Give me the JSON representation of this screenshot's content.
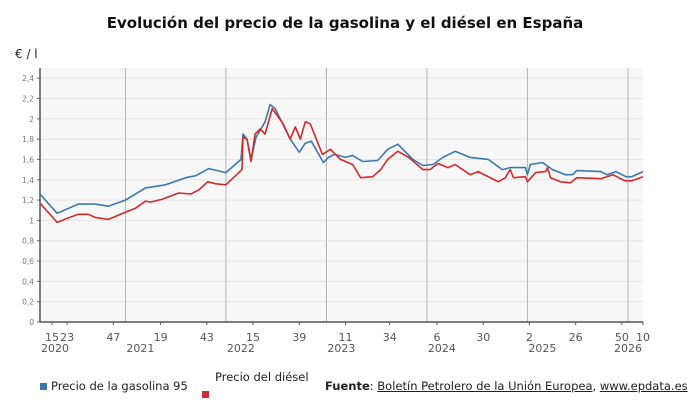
{
  "chart_data": {
    "type": "line",
    "title": "Evolución del precio de la gasolina y el diésel en España",
    "ylabel": "€ / l",
    "xlabel": "",
    "ylim": [
      0,
      2.5
    ],
    "xlim": [
      2020.15,
      2026.15
    ],
    "y_ticks": [
      "0",
      "0,2",
      "0,4",
      "0,6",
      "0,8",
      "1",
      "1,2",
      "1,4",
      "1,6",
      "1,8",
      "2",
      "2,2",
      "2,4"
    ],
    "y_tick_values": [
      0,
      0.2,
      0.4,
      0.6,
      0.8,
      1,
      1.2,
      1.4,
      1.6,
      1.8,
      2,
      2.2,
      2.4
    ],
    "x_ticks": [
      {
        "label": "15",
        "x": 2020.27
      },
      {
        "label": "23",
        "x": 2020.42
      },
      {
        "label": "47",
        "x": 2020.88
      },
      {
        "label": "19",
        "x": 2021.35
      },
      {
        "label": "43",
        "x": 2021.81
      },
      {
        "label": "15",
        "x": 2022.27
      },
      {
        "label": "39",
        "x": 2022.73
      },
      {
        "label": "11",
        "x": 2023.19
      },
      {
        "label": "34",
        "x": 2023.63
      },
      {
        "label": "6",
        "x": 2024.1
      },
      {
        "label": "30",
        "x": 2024.56
      },
      {
        "label": "2",
        "x": 2025.02
      },
      {
        "label": "26",
        "x": 2025.48
      },
      {
        "label": "50",
        "x": 2025.94
      },
      {
        "label": "10",
        "x": 2026.17
      }
    ],
    "year_labels": [
      {
        "label": "2020",
        "x": 2020.15
      },
      {
        "label": "2021",
        "x": 2021.0
      },
      {
        "label": "2022",
        "x": 2022.0
      },
      {
        "label": "2023",
        "x": 2023.0
      },
      {
        "label": "2024",
        "x": 2024.0
      },
      {
        "label": "2025",
        "x": 2025.0
      },
      {
        "label": "2026",
        "x": 2026.0
      }
    ],
    "year_dividers": [
      2021,
      2022,
      2023,
      2024,
      2025,
      2026
    ],
    "grid": true,
    "legend_position": "bottom-left",
    "series": [
      {
        "name": "Precio de la gasolina 95",
        "color": "#3a78b0",
        "points": [
          [
            2020.15,
            1.26
          ],
          [
            2020.32,
            1.07
          ],
          [
            2020.53,
            1.16
          ],
          [
            2020.7,
            1.16
          ],
          [
            2020.83,
            1.14
          ],
          [
            2021.0,
            1.2
          ],
          [
            2021.2,
            1.32
          ],
          [
            2021.4,
            1.35
          ],
          [
            2021.6,
            1.42
          ],
          [
            2021.7,
            1.44
          ],
          [
            2021.83,
            1.51
          ],
          [
            2022.0,
            1.47
          ],
          [
            2022.15,
            1.6
          ],
          [
            2022.17,
            1.85
          ],
          [
            2022.21,
            1.8
          ],
          [
            2022.25,
            1.6
          ],
          [
            2022.3,
            1.82
          ],
          [
            2022.39,
            1.97
          ],
          [
            2022.44,
            2.14
          ],
          [
            2022.49,
            2.1
          ],
          [
            2022.64,
            1.8
          ],
          [
            2022.73,
            1.67
          ],
          [
            2022.79,
            1.76
          ],
          [
            2022.85,
            1.78
          ],
          [
            2022.97,
            1.57
          ],
          [
            2023.02,
            1.62
          ],
          [
            2023.08,
            1.65
          ],
          [
            2023.19,
            1.62
          ],
          [
            2023.26,
            1.64
          ],
          [
            2023.36,
            1.58
          ],
          [
            2023.51,
            1.59
          ],
          [
            2023.61,
            1.7
          ],
          [
            2023.71,
            1.75
          ],
          [
            2023.76,
            1.7
          ],
          [
            2023.86,
            1.6
          ],
          [
            2023.96,
            1.54
          ],
          [
            2024.06,
            1.55
          ],
          [
            2024.16,
            1.62
          ],
          [
            2024.28,
            1.68
          ],
          [
            2024.43,
            1.62
          ],
          [
            2024.61,
            1.6
          ],
          [
            2024.75,
            1.5
          ],
          [
            2024.83,
            1.52
          ],
          [
            2024.98,
            1.52
          ],
          [
            2025.0,
            1.45
          ],
          [
            2025.03,
            1.55
          ],
          [
            2025.15,
            1.57
          ],
          [
            2025.25,
            1.5
          ],
          [
            2025.38,
            1.45
          ],
          [
            2025.45,
            1.45
          ],
          [
            2025.49,
            1.49
          ],
          [
            2025.73,
            1.48
          ],
          [
            2025.79,
            1.45
          ],
          [
            2025.88,
            1.48
          ],
          [
            2025.98,
            1.43
          ],
          [
            2026.04,
            1.43
          ],
          [
            2026.15,
            1.48
          ]
        ]
      },
      {
        "name": "Precio del diésel",
        "color": "#d42a2a",
        "points": [
          [
            2020.15,
            1.17
          ],
          [
            2020.32,
            0.98
          ],
          [
            2020.42,
            1.02
          ],
          [
            2020.53,
            1.06
          ],
          [
            2020.63,
            1.06
          ],
          [
            2020.7,
            1.03
          ],
          [
            2020.83,
            1.01
          ],
          [
            2021.0,
            1.08
          ],
          [
            2021.1,
            1.12
          ],
          [
            2021.2,
            1.19
          ],
          [
            2021.25,
            1.18
          ],
          [
            2021.37,
            1.21
          ],
          [
            2021.53,
            1.27
          ],
          [
            2021.65,
            1.26
          ],
          [
            2021.73,
            1.3
          ],
          [
            2021.82,
            1.38
          ],
          [
            2021.9,
            1.36
          ],
          [
            2022.0,
            1.35
          ],
          [
            2022.16,
            1.5
          ],
          [
            2022.17,
            1.82
          ],
          [
            2022.21,
            1.8
          ],
          [
            2022.25,
            1.58
          ],
          [
            2022.29,
            1.85
          ],
          [
            2022.34,
            1.9
          ],
          [
            2022.39,
            1.85
          ],
          [
            2022.46,
            2.1
          ],
          [
            2022.57,
            1.95
          ],
          [
            2022.64,
            1.8
          ],
          [
            2022.69,
            1.92
          ],
          [
            2022.74,
            1.8
          ],
          [
            2022.79,
            1.97
          ],
          [
            2022.84,
            1.95
          ],
          [
            2022.96,
            1.65
          ],
          [
            2023.04,
            1.7
          ],
          [
            2023.14,
            1.6
          ],
          [
            2023.26,
            1.55
          ],
          [
            2023.34,
            1.42
          ],
          [
            2023.46,
            1.43
          ],
          [
            2023.54,
            1.5
          ],
          [
            2023.61,
            1.6
          ],
          [
            2023.71,
            1.68
          ],
          [
            2023.82,
            1.62
          ],
          [
            2023.96,
            1.5
          ],
          [
            2024.03,
            1.5
          ],
          [
            2024.11,
            1.56
          ],
          [
            2024.21,
            1.52
          ],
          [
            2024.28,
            1.55
          ],
          [
            2024.43,
            1.45
          ],
          [
            2024.51,
            1.48
          ],
          [
            2024.71,
            1.38
          ],
          [
            2024.78,
            1.42
          ],
          [
            2024.83,
            1.5
          ],
          [
            2024.86,
            1.42
          ],
          [
            2024.98,
            1.43
          ],
          [
            2025.0,
            1.38
          ],
          [
            2025.08,
            1.47
          ],
          [
            2025.18,
            1.48
          ],
          [
            2025.2,
            1.52
          ],
          [
            2025.23,
            1.42
          ],
          [
            2025.33,
            1.38
          ],
          [
            2025.43,
            1.37
          ],
          [
            2025.49,
            1.42
          ],
          [
            2025.73,
            1.41
          ],
          [
            2025.85,
            1.45
          ],
          [
            2025.97,
            1.39
          ],
          [
            2026.04,
            1.39
          ],
          [
            2026.15,
            1.43
          ]
        ]
      }
    ]
  },
  "legend": {
    "gasolina_label": "Precio de la gasolina 95",
    "diesel_label": "Precio del diésel"
  },
  "source": {
    "prefix": "Fuente",
    "link1": "Boletín Petrolero de la Unión Europea",
    "separator": ", ",
    "link2": "www.epdata.es"
  }
}
